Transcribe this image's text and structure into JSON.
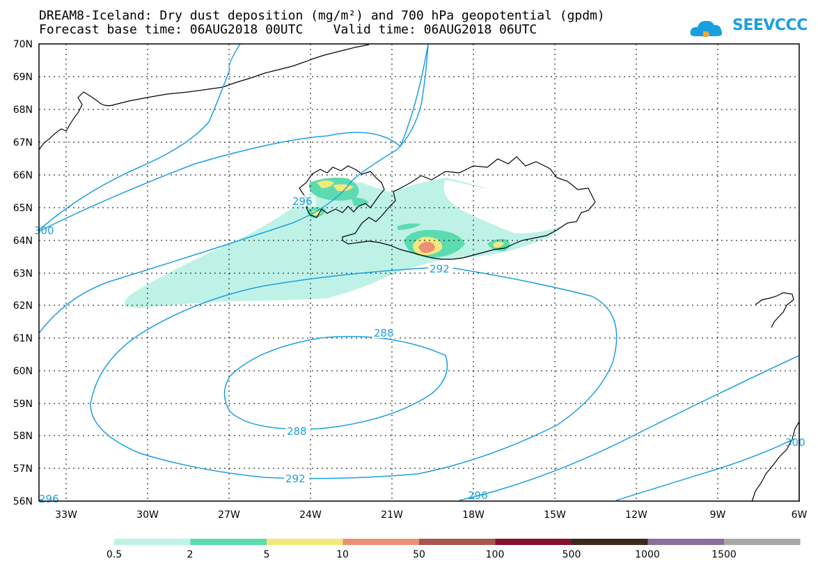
{
  "title_line1": "DREAM8-Iceland: Dry dust deposition (mg/m²) and 700 hPa geopotential (gpdm)",
  "title_line2": "Forecast base time: 06AUG2018 00UTC    Valid time: 06AUG2018 06UTC",
  "logo_text": "SEEVCCC",
  "logo_icon": "cloud-icon",
  "colors": {
    "contour": "#1a9fe0",
    "coast": "#000000"
  },
  "lat_labels": [
    "70N",
    "69N",
    "68N",
    "67N",
    "66N",
    "65N",
    "64N",
    "63N",
    "62N",
    "61N",
    "60N",
    "59N",
    "58N",
    "57N",
    "56N"
  ],
  "lon_labels": [
    "33W",
    "30W",
    "27W",
    "24W",
    "21W",
    "18W",
    "15W",
    "12W",
    "9W",
    "6W"
  ],
  "contour_labels": [
    "296",
    "300",
    "292",
    "288",
    "288",
    "292",
    "296",
    "300",
    "296"
  ],
  "legend": {
    "thresholds": [
      "0.5",
      "2",
      "5",
      "10",
      "50",
      "100",
      "500",
      "1000",
      "1500"
    ],
    "colors": [
      "#bff2e6",
      "#5ddbb0",
      "#f4e77c",
      "#ec9173",
      "#a95550",
      "#85102f",
      "#3a2a1c",
      "#8a6e9e",
      "#a8a8a8"
    ]
  }
}
